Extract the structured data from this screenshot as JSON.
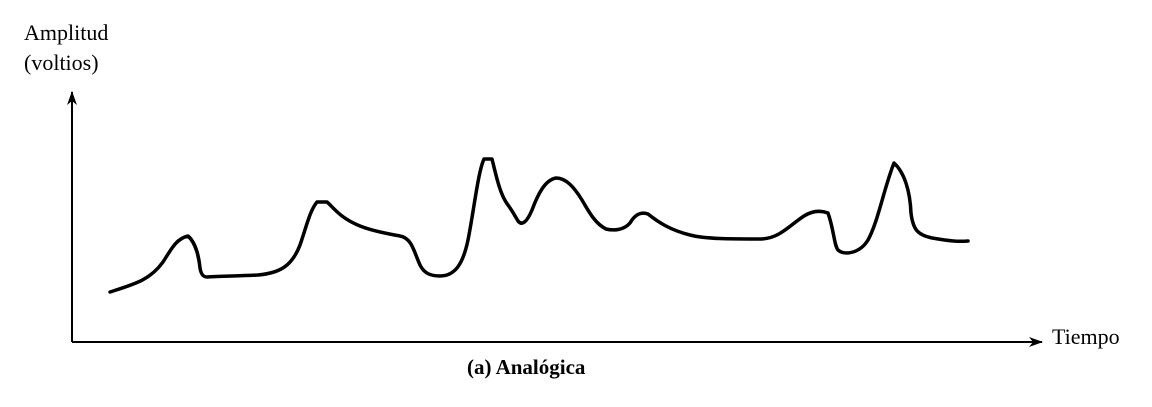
{
  "diagram": {
    "y_axis_label_line1": "Amplitud",
    "y_axis_label_line2": "(voltios)",
    "x_axis_label": "Tiempo",
    "caption": "(a) Analógica",
    "line_color": "#000000"
  }
}
